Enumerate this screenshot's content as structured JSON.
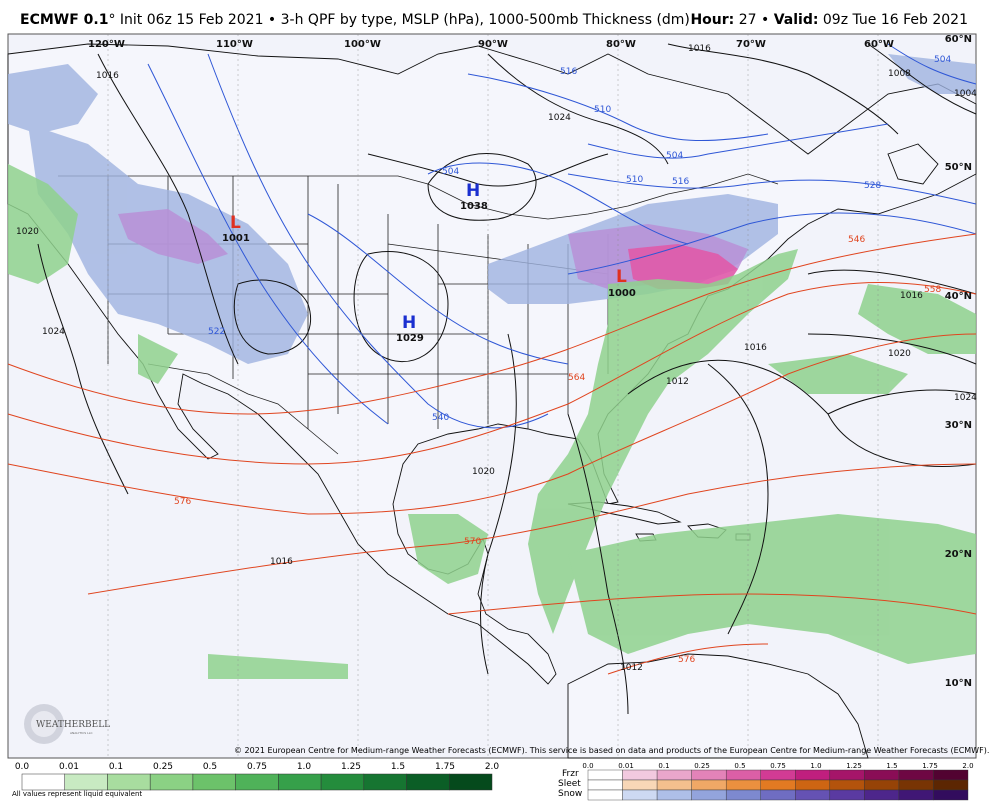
{
  "header": {
    "model": "ECMWF 0.1",
    "degree": "°",
    "description": " Init 06z 15 Feb 2021 • 3-h QPF by type, MSLP (hPa), 1000-500mb Thickness (dm)",
    "hour_label": "Hour:",
    "hour_value": " 27 • ",
    "valid_label": "Valid:",
    "valid_value": " 09z Tue 16 Feb 2021"
  },
  "map": {
    "lon_labels": [
      "120°W",
      "110°W",
      "100°W",
      "90°W",
      "80°W",
      "70°W",
      "60°W"
    ],
    "lat_labels": [
      "60°N",
      "50°N",
      "40°N",
      "30°N",
      "20°N",
      "10°N"
    ],
    "pressure_centers": [
      {
        "type": "H",
        "value": "1038"
      },
      {
        "type": "H",
        "value": "1029"
      },
      {
        "type": "L",
        "value": "1001"
      },
      {
        "type": "L",
        "value": "1000"
      }
    ],
    "isobar_labels": [
      "1016",
      "1016",
      "1008",
      "1004",
      "1024",
      "1020",
      "1024",
      "1020",
      "1016",
      "1016",
      "1012",
      "1020",
      "1024",
      "1012",
      "1016"
    ],
    "thickness_labels_blue": [
      "516",
      "510",
      "504",
      "504",
      "510",
      "516",
      "528",
      "540",
      "504",
      "522"
    ],
    "thickness_labels_red": [
      "546",
      "558",
      "570",
      "576",
      "564",
      "576"
    ],
    "colors": {
      "ocean": "#f2f3fa",
      "land": "#f4f5fb",
      "isobar": "#111111",
      "thickness_cold": "#2f57d6",
      "thickness_warm": "#e0451f",
      "rain": "#8fd18d",
      "snow": "#9fb3e0",
      "mix": "#b98fd6",
      "frzr": "#e05aa9"
    }
  },
  "copyright": "© 2021 European Centre for Medium-range Weather Forecasts (ECMWF). This service is based on data and products of the European Centre for Medium-range Weather Forecasts (ECMWF).",
  "legend": {
    "rain_ticks": [
      "0.0",
      "0.01",
      "0.1",
      "0.25",
      "0.5",
      "0.75",
      "1.0",
      "1.25",
      "1.5",
      "1.75",
      "2.0"
    ],
    "rain_colors": [
      "#ffffff",
      "#c8eac2",
      "#a8dd9f",
      "#8bd184",
      "#6cc26a",
      "#4fb259",
      "#36a04a",
      "#248c3c",
      "#167531",
      "#0b5e26",
      "#054a1c"
    ],
    "note": "All values represent liquid equivalent",
    "ptype_ticks": [
      "0.0",
      "0.01",
      "0.1",
      "0.25",
      "0.5",
      "0.75",
      "1.0",
      "1.25",
      "1.5",
      "1.75",
      "2.0"
    ],
    "ptype_rows": [
      {
        "label": "Frzr",
        "colors": [
          "#ffffff",
          "#f2c9df",
          "#eaa6cb",
          "#e383b8",
          "#db5fa6",
          "#d23b94",
          "#c01f7e",
          "#a51569",
          "#8a0d56",
          "#6e0743",
          "#520331"
        ]
      },
      {
        "label": "Sleet",
        "colors": [
          "#ffffff",
          "#f8d7b7",
          "#f4c08e",
          "#f0a866",
          "#eb903f",
          "#e27a22",
          "#cd6513",
          "#b3530c",
          "#964307",
          "#783404",
          "#5c2602"
        ]
      },
      {
        "label": "Snow",
        "colors": [
          "#ffffff",
          "#cdd9f2",
          "#aebfe8",
          "#93a4dc",
          "#7d89cf",
          "#6f6dc2",
          "#6552b3",
          "#5a3aa1",
          "#4d268b",
          "#401775",
          "#320c5d"
        ]
      }
    ]
  },
  "logo": {
    "brand": "WEATHERBELL",
    "sub": "ANALYTICS LLC"
  }
}
